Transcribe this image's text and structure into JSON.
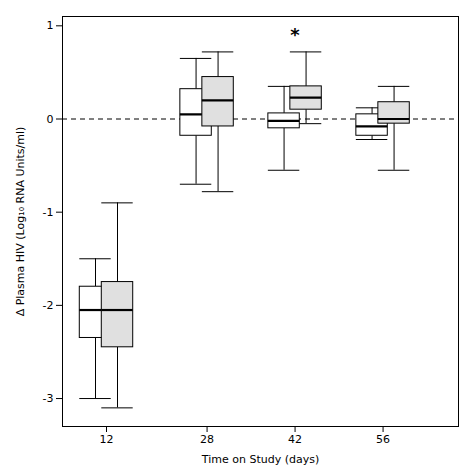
{
  "chart_data": {
    "type": "box",
    "xlabel": "Time on Study (days)",
    "ylabel": "Δ Plasma HIV (Log₁₀ RNA Units/ml)",
    "x": [
      12,
      28,
      42,
      56
    ],
    "xlim": [
      5,
      68
    ],
    "xticks": [
      12,
      28,
      42,
      56
    ],
    "ylim": [
      -3.3,
      1.1
    ],
    "yticks": [
      -3,
      -2,
      -1,
      0,
      1
    ],
    "grid": false,
    "edge_color": "#000000",
    "series": [
      {
        "color": "#ffffff",
        "q1": [
          -2.35,
          -0.18,
          -0.1,
          -0.18
        ],
        "median": [
          -2.05,
          0.05,
          -0.02,
          -0.08
        ],
        "q3": [
          -1.8,
          0.32,
          0.06,
          0.05
        ],
        "whislo": [
          -3.0,
          -0.7,
          -0.55,
          -0.22
        ],
        "whishi": [
          -1.5,
          0.65,
          0.35,
          0.12
        ]
      },
      {
        "color": "#e0e0e0",
        "q1": [
          -2.45,
          -0.08,
          0.1,
          -0.05
        ],
        "median": [
          -2.05,
          0.2,
          0.23,
          0.0
        ],
        "q3": [
          -1.75,
          0.45,
          0.35,
          0.18
        ],
        "whislo": [
          -3.1,
          -0.78,
          -0.05,
          -0.55
        ],
        "whishi": [
          -0.9,
          0.72,
          0.72,
          0.35
        ]
      }
    ],
    "reference_lines": [
      {
        "y": 0,
        "line_style": "dashed"
      }
    ],
    "annotations": [
      {
        "text": "*",
        "x": 42,
        "y": 0.9
      }
    ]
  }
}
